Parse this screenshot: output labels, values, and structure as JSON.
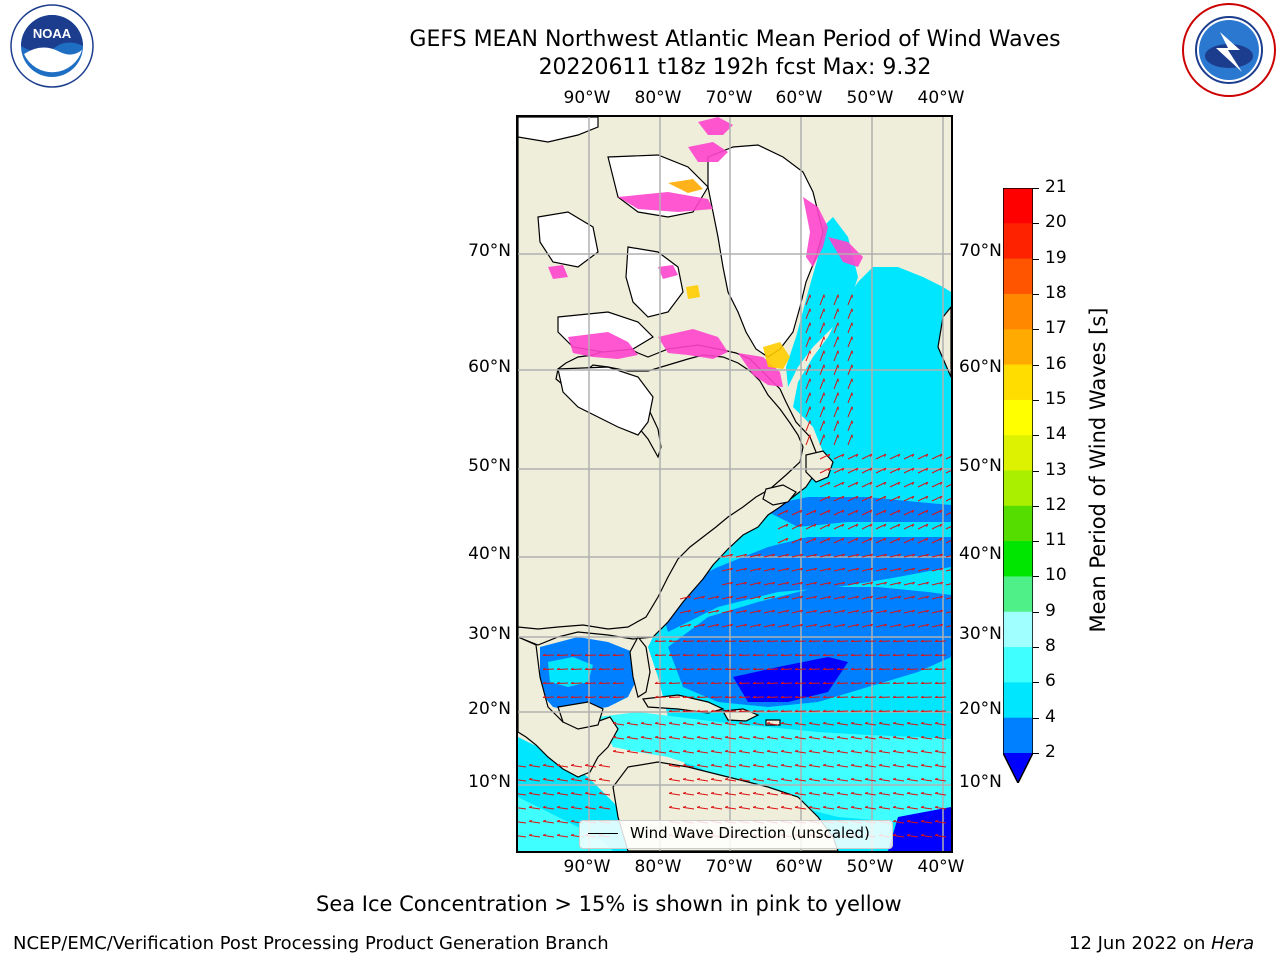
{
  "title": {
    "line1": "GEFS MEAN Northwest Atlantic Mean Period of Wind Waves",
    "line2": "20220611 t18z 192h fcst   Max: 9.32"
  },
  "logos": {
    "noara_icon": "noaa-logo",
    "noaa_text": "NOAA",
    "nws_icon": "nws-logo"
  },
  "map": {
    "lon_labels": [
      "90°W",
      "80°W",
      "70°W",
      "60°W",
      "50°W",
      "40°W"
    ],
    "lat_labels": [
      "70°N",
      "60°N",
      "50°N",
      "40°N",
      "30°N",
      "20°N",
      "10°N"
    ],
    "legend_label": "Wind Wave Direction (unscaled)",
    "colors": {
      "land": "#efeedb",
      "ice": "#ff44cc",
      "vector": "#dd1111",
      "grid": "#b0b0b0"
    }
  },
  "colorbar": {
    "label": "Mean Period of Wind Waves [s]",
    "ticks": [
      "2",
      "4",
      "6",
      "8",
      "9",
      "10",
      "11",
      "12",
      "13",
      "14",
      "15",
      "16",
      "17",
      "18",
      "19",
      "20",
      "21"
    ],
    "colors": [
      "#0000ff",
      "#0080ff",
      "#00e6ff",
      "#40ffff",
      "#a0ffff",
      "#50f088",
      "#00e600",
      "#55dd00",
      "#aaee00",
      "#ddf200",
      "#ffff00",
      "#ffdd00",
      "#ffaa00",
      "#ff8800",
      "#ff5500",
      "#ff2200",
      "#ff0000"
    ]
  },
  "footer": {
    "note": "Sea Ice Concentration > 15% is shown in pink to yellow",
    "credit": "NCEP/EMC/Verification Post Processing Product Generation Branch",
    "date": "12 Jun 2022 on ",
    "machine": "Hera"
  }
}
